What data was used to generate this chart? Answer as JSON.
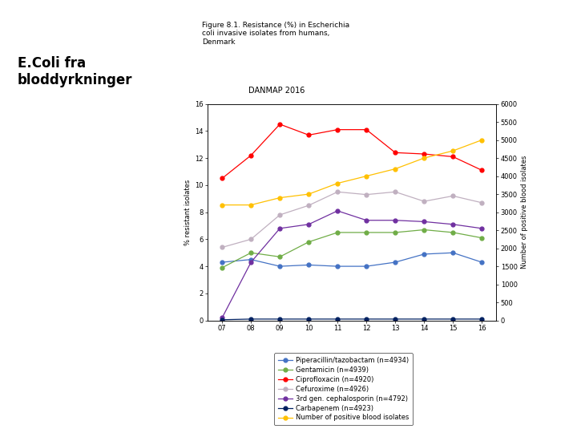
{
  "title_left": "E.Coli fra\nbloddyrkninger",
  "figure_title": "Figure 8.1. Resistance (%) in Escherichia\ncoli invasive isolates from humans,\nDenmark",
  "subtitle": "DANMAP 2016",
  "years": [
    7,
    8,
    9,
    10,
    11,
    12,
    13,
    14,
    15,
    16
  ],
  "year_labels": [
    "07",
    "08",
    "09",
    "10",
    "11",
    "12",
    "13",
    "14",
    "15",
    "16"
  ],
  "piperacillin": [
    4.3,
    4.5,
    4.0,
    4.1,
    4.0,
    4.0,
    4.3,
    4.9,
    5.0,
    4.3
  ],
  "gentamicin": [
    3.9,
    5.0,
    4.7,
    5.8,
    6.5,
    6.5,
    6.5,
    6.7,
    6.5,
    6.1
  ],
  "ciprofloxacin": [
    10.5,
    12.2,
    14.5,
    13.7,
    14.1,
    14.1,
    12.4,
    12.3,
    12.1,
    11.1
  ],
  "cefuroxime": [
    5.4,
    6.0,
    7.8,
    8.5,
    9.5,
    9.3,
    9.5,
    8.8,
    9.2,
    8.7
  ],
  "cephalosporin_3rd": [
    0.2,
    4.3,
    6.8,
    7.1,
    8.1,
    7.4,
    7.4,
    7.3,
    7.1,
    6.8
  ],
  "carbapenem": [
    0.05,
    0.1,
    0.1,
    0.1,
    0.1,
    0.1,
    0.1,
    0.1,
    0.1,
    0.1
  ],
  "blood_isolates": [
    3200,
    3200,
    3400,
    3500,
    3800,
    4000,
    4200,
    4500,
    4700,
    5000
  ],
  "piperacillin_color": "#4472C4",
  "gentamicin_color": "#70AD47",
  "ciprofloxacin_color": "#FF0000",
  "cefuroxime_color": "#C0B0C0",
  "cephalosporin_color": "#7030A0",
  "carbapenem_color": "#002060",
  "blood_color": "#FFC000",
  "ylim_left": [
    0,
    16
  ],
  "ylim_right": [
    0,
    6000
  ],
  "yticks_left": [
    0,
    2,
    4,
    6,
    8,
    10,
    12,
    14,
    16
  ],
  "yticks_right": [
    0,
    500,
    1000,
    1500,
    2000,
    2500,
    3000,
    3500,
    4000,
    4500,
    5000,
    5500,
    6000
  ],
  "ylabel_left": "% resistant isolates",
  "ylabel_right": "Number of positive blood isolates",
  "legend_entries": [
    "Piperacillin/tazobactam (n=4934)",
    "Gentamicin (n=4939)",
    "Ciprofloxacin (n=4920)",
    "Cefuroxime (n=4926)",
    "3rd gen. cephalosporin (n=4792)",
    "Carbapenem (n=4923)",
    "Number of positive blood isolates"
  ],
  "legend_colors": [
    "#4472C4",
    "#70AD47",
    "#FF0000",
    "#C0B0C0",
    "#7030A0",
    "#002060",
    "#FFC000"
  ],
  "bg_color": "#FFFFFF",
  "bottom_bar_color": "#8B0000"
}
